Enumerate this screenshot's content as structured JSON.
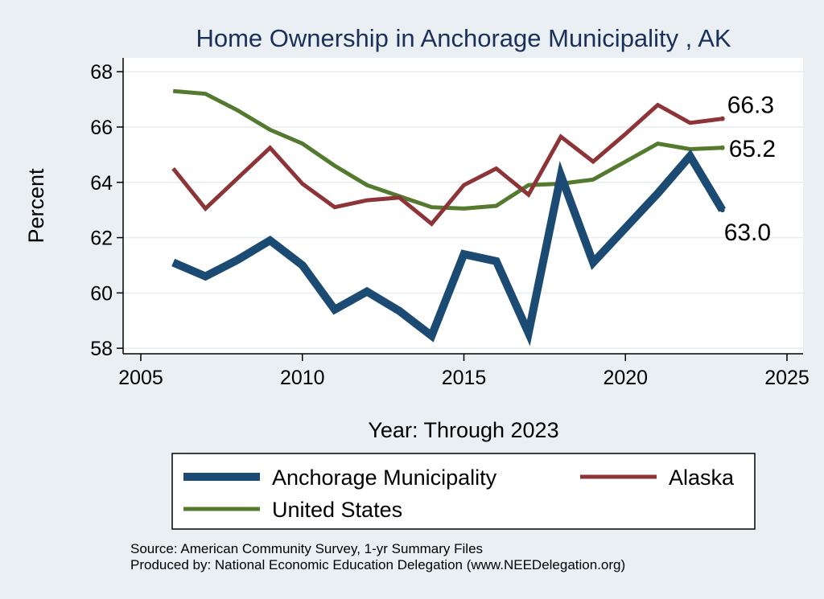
{
  "colors": {
    "background": "#e9eff2",
    "plot_background": "#ffffff",
    "anchorage": "#1b4a73",
    "alaska": "#8d3438",
    "united_states": "#537a2f",
    "title": "#1a2f5a"
  },
  "chart_data": {
    "type": "line",
    "title": "Home Ownership in Anchorage Municipality , AK",
    "xlabel": "Year: Through 2023",
    "ylabel": "Percent",
    "xlim": [
      2005,
      2025
    ],
    "ylim": [
      57.8,
      68.5
    ],
    "xticks": [
      2005,
      2010,
      2015,
      2020,
      2025
    ],
    "yticks": [
      58,
      60,
      62,
      64,
      66,
      68
    ],
    "grid": true,
    "legend_position": "bottom",
    "series": [
      {
        "name": "Anchorage Municipality",
        "x": [
          2006,
          2007,
          2008,
          2009,
          2010,
          2011,
          2012,
          2013,
          2014,
          2015,
          2016,
          2017,
          2018,
          2019,
          2020,
          2021,
          2022,
          2023
        ],
        "values": [
          61.1,
          60.6,
          61.2,
          61.9,
          61.0,
          59.4,
          60.05,
          59.35,
          58.45,
          61.4,
          61.15,
          58.55,
          64.25,
          61.1,
          62.35,
          63.6,
          64.95,
          63.0
        ],
        "end_label": "63.0"
      },
      {
        "name": "Alaska",
        "x": [
          2006,
          2007,
          2008,
          2009,
          2010,
          2011,
          2012,
          2013,
          2014,
          2015,
          2016,
          2017,
          2018,
          2019,
          2020,
          2021,
          2022,
          2023
        ],
        "values": [
          64.5,
          63.05,
          64.15,
          65.25,
          63.95,
          63.1,
          63.35,
          63.45,
          62.5,
          63.9,
          64.5,
          63.55,
          65.65,
          64.75,
          65.75,
          66.8,
          66.15,
          66.3
        ],
        "end_label": "66.3"
      },
      {
        "name": "United States",
        "x": [
          2006,
          2007,
          2008,
          2009,
          2010,
          2011,
          2012,
          2013,
          2014,
          2015,
          2016,
          2017,
          2018,
          2019,
          2020,
          2021,
          2022,
          2023
        ],
        "values": [
          67.3,
          67.2,
          66.6,
          65.9,
          65.4,
          64.6,
          63.9,
          63.5,
          63.1,
          63.05,
          63.15,
          63.9,
          63.95,
          64.1,
          64.75,
          65.4,
          65.2,
          65.25
        ],
        "end_label": "65.2"
      }
    ]
  },
  "notes": {
    "source": "Source: American Community Survey, 1-yr Summary Files",
    "produced_by": "Produced by: National Economic Education Delegation (www.NEEDelegation.org)"
  }
}
